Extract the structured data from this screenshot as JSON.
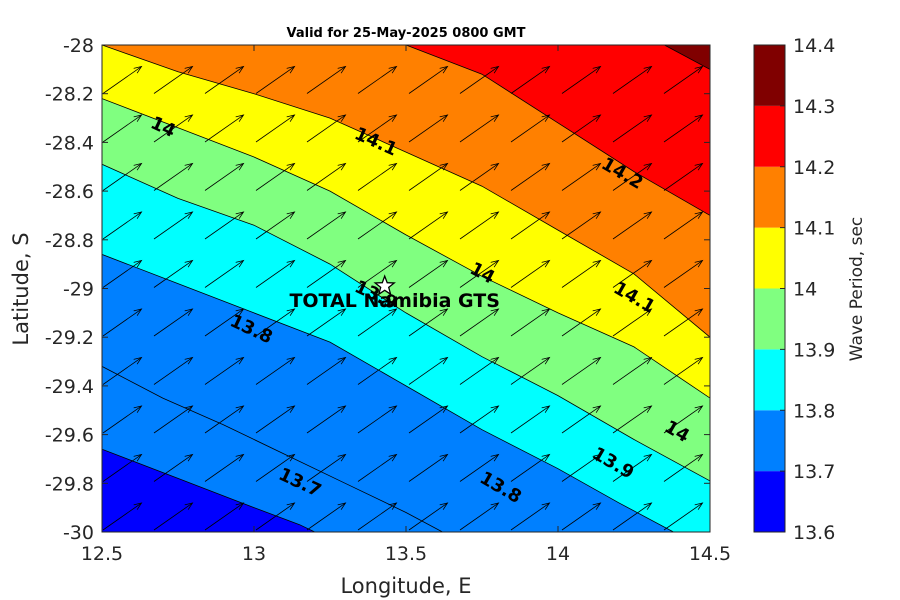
{
  "chart_data": {
    "type": "contourf",
    "title": "Valid for 25-May-2025 0800 GMT",
    "xlabel": "Longitude, E",
    "ylabel": "Latitude, S",
    "xlim": [
      12.5,
      14.5
    ],
    "ylim": [
      -30,
      -28
    ],
    "xticks": [
      "12.5",
      "13",
      "13.5",
      "14",
      "14.5"
    ],
    "yticks": [
      "-28",
      "-28.2",
      "-28.4",
      "-28.6",
      "-28.8",
      "-29",
      "-29.2",
      "-29.4",
      "-29.6",
      "-29.8",
      "-30"
    ],
    "colorbar": {
      "label": "Wave Period, sec",
      "range": [
        13.6,
        14.4
      ],
      "ticks": [
        "14.4",
        "14.3",
        "14.2",
        "14.1",
        "14",
        "13.9",
        "13.8",
        "13.7",
        "13.6"
      ],
      "levels": [
        {
          "from": 13.6,
          "to": 13.7,
          "color": "#0000ff"
        },
        {
          "from": 13.7,
          "to": 13.8,
          "color": "#0080ff"
        },
        {
          "from": 13.8,
          "to": 13.9,
          "color": "#00ffff"
        },
        {
          "from": 13.9,
          "to": 14.0,
          "color": "#80ff80"
        },
        {
          "from": 14.0,
          "to": 14.1,
          "color": "#ffff00"
        },
        {
          "from": 14.1,
          "to": 14.2,
          "color": "#ff8000"
        },
        {
          "from": 14.2,
          "to": 14.3,
          "color": "#ff0000"
        },
        {
          "from": 14.3,
          "to": 14.4,
          "color": "#800000"
        }
      ]
    },
    "contours": [
      {
        "level": 13.7,
        "points": [
          [
            12.5,
            -29.66
          ],
          [
            12.75,
            -29.78
          ],
          [
            13.0,
            -29.9
          ],
          [
            13.15,
            -29.97
          ],
          [
            13.2,
            -30.0
          ]
        ]
      },
      {
        "level": 13.7,
        "points": [
          [
            12.5,
            -29.32
          ],
          [
            12.7,
            -29.45
          ],
          [
            12.9,
            -29.56
          ],
          [
            13.1,
            -29.68
          ],
          [
            13.3,
            -29.8
          ],
          [
            13.5,
            -29.92
          ],
          [
            13.62,
            -30.0
          ]
        ]
      },
      {
        "level": 13.8,
        "points": [
          [
            12.5,
            -28.86
          ],
          [
            12.75,
            -28.98
          ],
          [
            13.0,
            -29.1
          ],
          [
            13.25,
            -29.22
          ],
          [
            13.5,
            -29.4
          ],
          [
            13.75,
            -29.58
          ],
          [
            14.0,
            -29.74
          ],
          [
            14.2,
            -29.88
          ],
          [
            14.38,
            -30.0
          ]
        ]
      },
      {
        "level": 13.9,
        "points": [
          [
            12.5,
            -28.49
          ],
          [
            12.75,
            -28.63
          ],
          [
            13.0,
            -28.74
          ],
          [
            13.25,
            -28.9
          ],
          [
            13.5,
            -29.1
          ],
          [
            13.75,
            -29.28
          ],
          [
            14.0,
            -29.44
          ],
          [
            14.25,
            -29.62
          ],
          [
            14.5,
            -29.79
          ]
        ]
      },
      {
        "level": 14.0,
        "points": [
          [
            12.5,
            -28.22
          ],
          [
            12.75,
            -28.34
          ],
          [
            13.0,
            -28.46
          ],
          [
            13.25,
            -28.6
          ],
          [
            13.5,
            -28.78
          ],
          [
            13.75,
            -28.95
          ],
          [
            14.0,
            -29.1
          ],
          [
            14.25,
            -29.24
          ],
          [
            14.5,
            -29.45
          ]
        ]
      },
      {
        "level": 14.1,
        "points": [
          [
            12.5,
            -28.0
          ],
          [
            12.75,
            -28.11
          ],
          [
            13.0,
            -28.2
          ],
          [
            13.25,
            -28.3
          ],
          [
            13.5,
            -28.44
          ],
          [
            13.75,
            -28.58
          ],
          [
            14.0,
            -28.76
          ],
          [
            14.25,
            -28.94
          ],
          [
            14.5,
            -29.2
          ]
        ]
      },
      {
        "level": 14.2,
        "points": [
          [
            13.5,
            -28.0
          ],
          [
            13.75,
            -28.12
          ],
          [
            14.0,
            -28.32
          ],
          [
            14.25,
            -28.52
          ],
          [
            14.5,
            -28.7
          ]
        ]
      },
      {
        "level": 14.3,
        "points": [
          [
            14.35,
            -28.0
          ],
          [
            14.5,
            -28.1
          ]
        ]
      }
    ],
    "contour_labels": [
      {
        "text": "14",
        "x": 12.7,
        "y": -28.34,
        "angle": 25
      },
      {
        "text": "14.1",
        "x": 13.4,
        "y": -28.4,
        "angle": 24
      },
      {
        "text": "14.2",
        "x": 14.21,
        "y": -28.53,
        "angle": 30
      },
      {
        "text": "14",
        "x": 13.75,
        "y": -28.94,
        "angle": 28
      },
      {
        "text": "14.1",
        "x": 14.25,
        "y": -29.04,
        "angle": 30
      },
      {
        "text": "13.8",
        "x": 12.99,
        "y": -29.17,
        "angle": 25
      },
      {
        "text": "13.9",
        "x": 13.4,
        "y": -29.03,
        "angle": 25
      },
      {
        "text": "14",
        "x": 14.39,
        "y": -29.59,
        "angle": 30
      },
      {
        "text": "13.9",
        "x": 14.18,
        "y": -29.72,
        "angle": 30
      },
      {
        "text": "13.7",
        "x": 13.15,
        "y": -29.8,
        "angle": 25
      },
      {
        "text": "13.8",
        "x": 13.81,
        "y": -29.82,
        "angle": 30
      }
    ],
    "arrow_direction_deg": 35,
    "site": {
      "name": "TOTAL Namibia GTS",
      "lon": 13.43,
      "lat": -28.99,
      "marker": "star"
    }
  }
}
